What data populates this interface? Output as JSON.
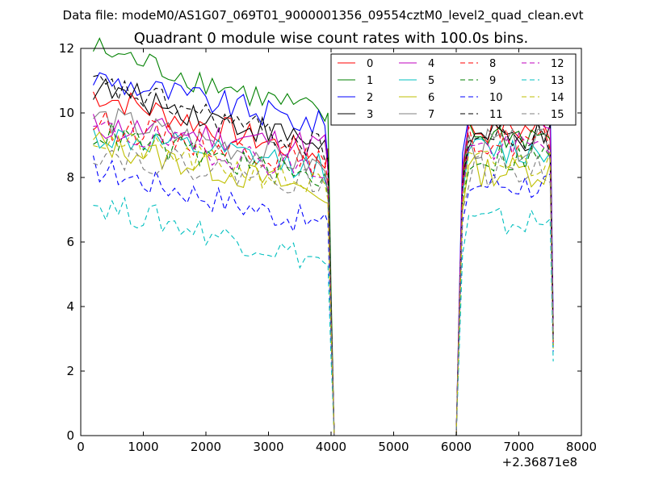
{
  "figure": {
    "suptitle": "Data file: modeM0/AS1G07_069T01_9000001356_09554cztM0_level2_quad_clean.evt"
  },
  "chart_data": {
    "type": "line",
    "title": "Quadrant 0 module wise count rates with 100.0s bins.",
    "xlabel": "",
    "ylabel": "",
    "x_offset_label": "+2.36871e8",
    "xlim": [
      0,
      8000
    ],
    "ylim": [
      0,
      12
    ],
    "xticks": [
      0,
      1000,
      2000,
      3000,
      4000,
      5000,
      6000,
      7000,
      8000
    ],
    "yticks": [
      0,
      2,
      4,
      6,
      8,
      10,
      12
    ],
    "legend_position": "top-right",
    "segments": [
      {
        "start": 200,
        "step": 100,
        "count": 38
      },
      {
        "start": 4100,
        "step": 100,
        "count": 19
      },
      {
        "start": 6100,
        "step": 100,
        "count": 15
      }
    ],
    "drop_points": [
      [
        4000,
        "drop"
      ],
      [
        4050,
        0
      ],
      [
        6000,
        0
      ]
    ],
    "series": [
      {
        "name": "0",
        "color": "#ff0000",
        "dash": "solid",
        "seg1_start": 10.6,
        "seg1_end": 8.6,
        "gap": 0,
        "seg2_level": 9.5,
        "seg2_end": 2.8,
        "pre_drop": 8.9
      },
      {
        "name": "1",
        "color": "#008000",
        "dash": "solid",
        "seg1_start": 12.0,
        "seg1_end": 9.9,
        "gap": 0,
        "seg2_level": 9.3,
        "seg2_end": 3.0,
        "pre_drop": 10.0
      },
      {
        "name": "2",
        "color": "#0000ff",
        "dash": "solid",
        "seg1_start": 11.1,
        "seg1_end": 9.6,
        "gap": 0,
        "seg2_level": 10.3,
        "seg2_end": 3.6,
        "pre_drop": 8.5
      },
      {
        "name": "3",
        "color": "#000000",
        "dash": "solid",
        "seg1_start": 10.8,
        "seg1_end": 9.0,
        "gap": 0,
        "seg2_level": 9.2,
        "seg2_end": 3.1,
        "pre_drop": 8.4
      },
      {
        "name": "4",
        "color": "#bf00bf",
        "dash": "solid",
        "seg1_start": 9.6,
        "seg1_end": 9.0,
        "gap": 0,
        "seg2_level": 9.8,
        "seg2_end": 3.3,
        "pre_drop": 8.2
      },
      {
        "name": "5",
        "color": "#00bfbf",
        "dash": "solid",
        "seg1_start": 9.3,
        "seg1_end": 8.3,
        "gap": 0,
        "seg2_level": 8.8,
        "seg2_end": 2.9,
        "pre_drop": 7.6
      },
      {
        "name": "6",
        "color": "#bfbf00",
        "dash": "solid",
        "seg1_start": 9.1,
        "seg1_end": 7.5,
        "gap": 0,
        "seg2_level": 8.2,
        "seg2_end": 2.7,
        "pre_drop": 7.2
      },
      {
        "name": "7",
        "color": "#808080",
        "dash": "solid",
        "seg1_start": 9.9,
        "seg1_end": 8.3,
        "gap": 0,
        "seg2_level": 9.0,
        "seg2_end": 3.2,
        "pre_drop": 7.8
      },
      {
        "name": "8",
        "color": "#ff0000",
        "dash": "dashed",
        "seg1_start": 9.7,
        "seg1_end": 8.4,
        "gap": 0,
        "seg2_level": 9.1,
        "seg2_end": 2.9,
        "pre_drop": 7.9
      },
      {
        "name": "9",
        "color": "#008000",
        "dash": "dashed",
        "seg1_start": 9.4,
        "seg1_end": 7.9,
        "gap": 0,
        "seg2_level": 8.6,
        "seg2_end": 2.8,
        "pre_drop": 7.4
      },
      {
        "name": "10",
        "color": "#0000ff",
        "dash": "dashed",
        "seg1_start": 8.3,
        "seg1_end": 6.5,
        "gap": 0,
        "seg2_level": 7.8,
        "seg2_end": 2.6,
        "pre_drop": 6.6
      },
      {
        "name": "11",
        "color": "#000000",
        "dash": "dashed",
        "seg1_start": 10.9,
        "seg1_end": 8.9,
        "gap": 0,
        "seg2_level": 9.2,
        "seg2_end": 3.0,
        "pre_drop": 8.6
      },
      {
        "name": "12",
        "color": "#bf00bf",
        "dash": "dashed",
        "seg1_start": 9.5,
        "seg1_end": 8.2,
        "gap": 0,
        "seg2_level": 8.9,
        "seg2_end": 3.0,
        "pre_drop": 7.7
      },
      {
        "name": "13",
        "color": "#00bfbf",
        "dash": "dashed",
        "seg1_start": 7.2,
        "seg1_end": 5.4,
        "gap": 0,
        "seg2_level": 6.6,
        "seg2_end": 2.3,
        "pre_drop": 5.3
      },
      {
        "name": "14",
        "color": "#bfbf00",
        "dash": "dashed",
        "seg1_start": 9.2,
        "seg1_end": 7.7,
        "gap": 0,
        "seg2_level": 8.4,
        "seg2_end": 2.8,
        "pre_drop": 7.3
      },
      {
        "name": "15",
        "color": "#808080",
        "dash": "dashed",
        "seg1_start": 8.8,
        "seg1_end": 7.8,
        "gap": 0,
        "seg2_level": 8.2,
        "seg2_end": 2.9,
        "pre_drop": 7.5
      }
    ]
  }
}
